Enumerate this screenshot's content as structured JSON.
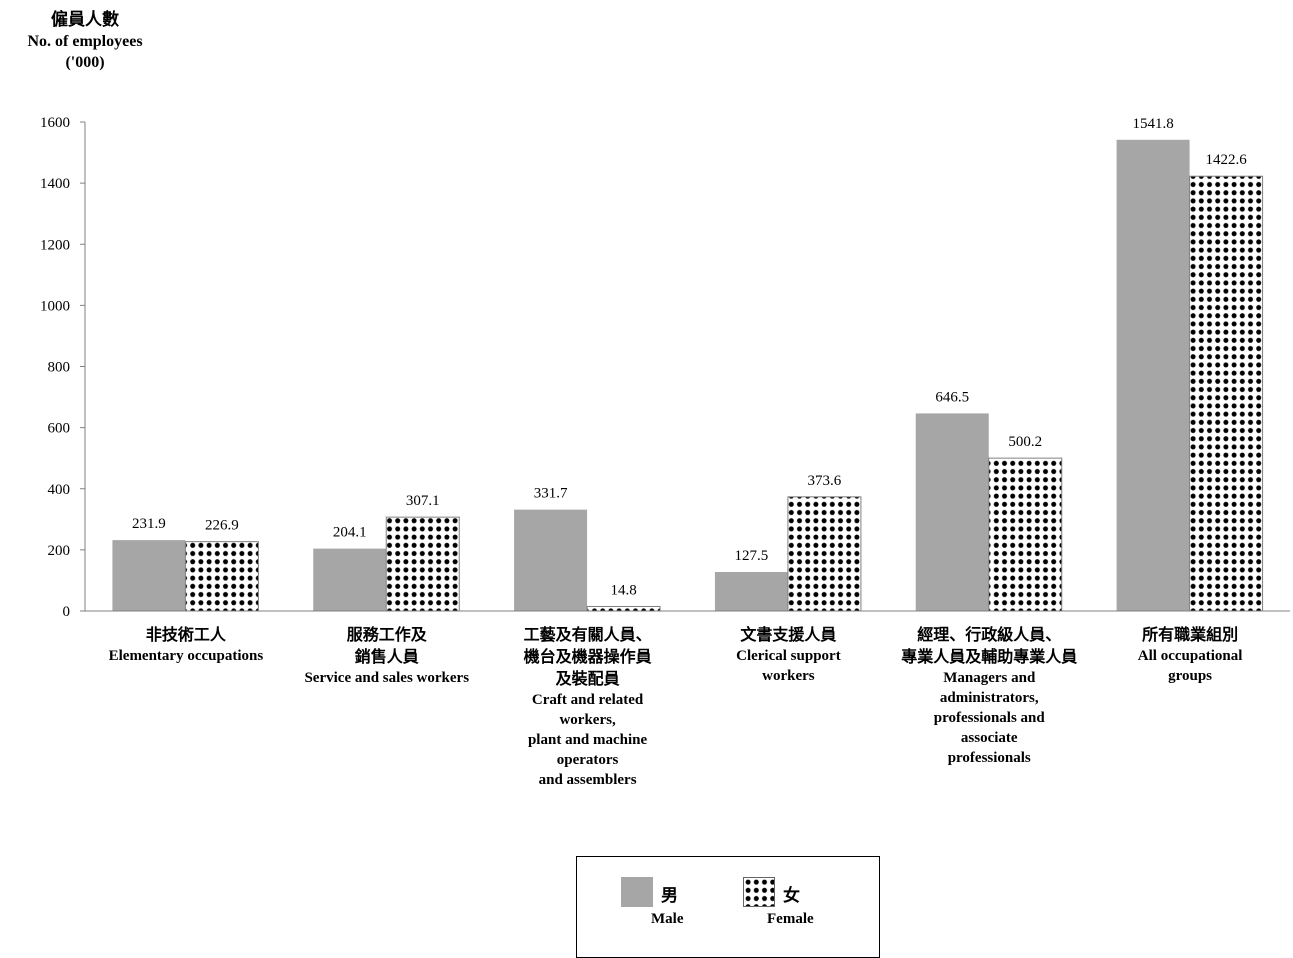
{
  "y_axis": {
    "label_zh": "僱員人數",
    "label_en": "No. of employees",
    "label_unit": "('000)"
  },
  "categories_labels": [
    {
      "zh": [
        "非技術工人"
      ],
      "en": [
        "Elementary occupations"
      ]
    },
    {
      "zh": [
        "服務工作及",
        "銷售人員"
      ],
      "en": [
        "Service and sales workers"
      ]
    },
    {
      "zh": [
        "工藝及有關人員、",
        "機台及機器操作員",
        "及裝配員"
      ],
      "en": [
        "Craft and related",
        "workers,",
        "plant and machine",
        "operators",
        "and assemblers"
      ]
    },
    {
      "zh": [
        "文書支援人員"
      ],
      "en": [
        "Clerical support",
        "workers"
      ]
    },
    {
      "zh": [
        "經理、行政級人員、",
        "專業人員及輔助專業人員"
      ],
      "en": [
        "Managers and",
        "administrators,",
        "professionals and",
        "associate",
        "professionals"
      ]
    },
    {
      "zh": [
        "所有職業組別"
      ],
      "en": [
        "All occupational",
        "groups"
      ]
    }
  ],
  "legend": {
    "male_zh": "男",
    "male_en": "Male",
    "female_zh": "女",
    "female_en": "Female"
  },
  "colors": {
    "male": "#a6a6a6",
    "female_dot": "#000000",
    "axis": "#808080"
  },
  "chart_data": {
    "type": "bar",
    "categories": [
      "Elementary occupations",
      "Service and sales workers",
      "Craft and related workers, plant and machine operators and assemblers",
      "Clerical support workers",
      "Managers and administrators, professionals and associate professionals",
      "All occupational groups"
    ],
    "series": [
      {
        "name": "Male",
        "values": [
          231.9,
          204.1,
          331.7,
          127.5,
          646.5,
          1541.8
        ]
      },
      {
        "name": "Female",
        "values": [
          226.9,
          307.1,
          14.8,
          373.6,
          500.2,
          1422.6
        ]
      }
    ],
    "data_labels": [
      [
        "231.9",
        "204.1",
        "331.7",
        "127.5",
        "646.5",
        "1541.8"
      ],
      [
        "226.9",
        "307.1",
        "14.8",
        "373.6",
        "500.2",
        "1422.6"
      ]
    ],
    "yticks": [
      "0",
      "200",
      "400",
      "600",
      "800",
      "1000",
      "1200",
      "1400",
      "1600"
    ],
    "ylim": [
      0,
      1600
    ],
    "grid": false,
    "legend_position": "bottom-center"
  }
}
